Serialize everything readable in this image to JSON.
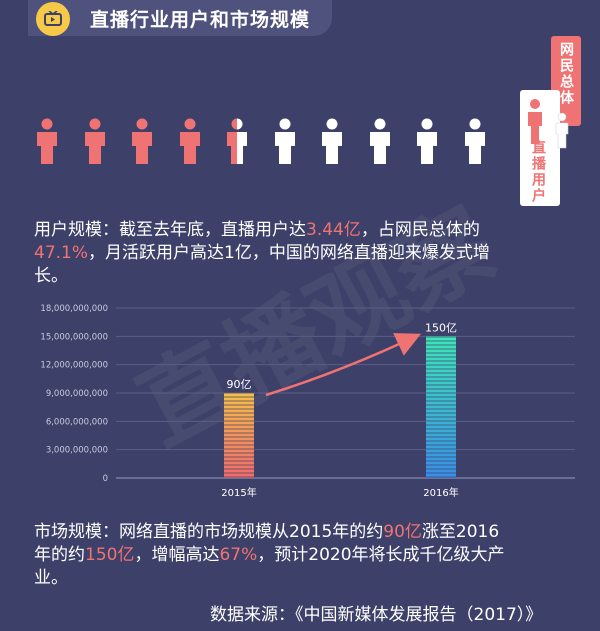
{
  "header": {
    "title": "直播行业用户和市场规模"
  },
  "people_graphic": {
    "filled": 4.5,
    "total": 10,
    "highlight_color": "#f07373",
    "base_color": "#ffffff"
  },
  "legend": {
    "total_label": "网民总体",
    "live_label": "直播用户"
  },
  "user_text": {
    "p1": "用户规模：截至去年底，直播用户达",
    "v1": "3.44亿",
    "p2": "，占网民总体的",
    "v2": "47.1%",
    "p3": "，月活跃用户高达1亿，中国的网络直播迎来爆发式增",
    "p4": "长。"
  },
  "chart_data": {
    "type": "bar",
    "categories": [
      "2015年",
      "2016年"
    ],
    "values": [
      9000000000,
      15000000000
    ],
    "data_labels": [
      "90亿",
      "150亿"
    ],
    "y_ticks": [
      "0",
      "3,000,000,000",
      "6,000,000,000",
      "9,000,000,000",
      "12,000,000,000",
      "15,000,000,000",
      "18,000,000,000"
    ],
    "ylim": [
      0,
      18000000000
    ],
    "title": "",
    "xlabel": "",
    "ylabel": ""
  },
  "market_text": {
    "p1": "市场规模：网络直播的市场规模从2015年的约",
    "v1": "90亿",
    "p2": "涨至2016",
    "p3": "年的约",
    "v2": "150亿",
    "p4": "，增幅高达",
    "v3": "67%",
    "p5": "，预计2020年将长成千亿级大产",
    "p6": "业。"
  },
  "source": "数据来源：《中国新媒体发展报告（2017）》",
  "watermark": "直播观察"
}
